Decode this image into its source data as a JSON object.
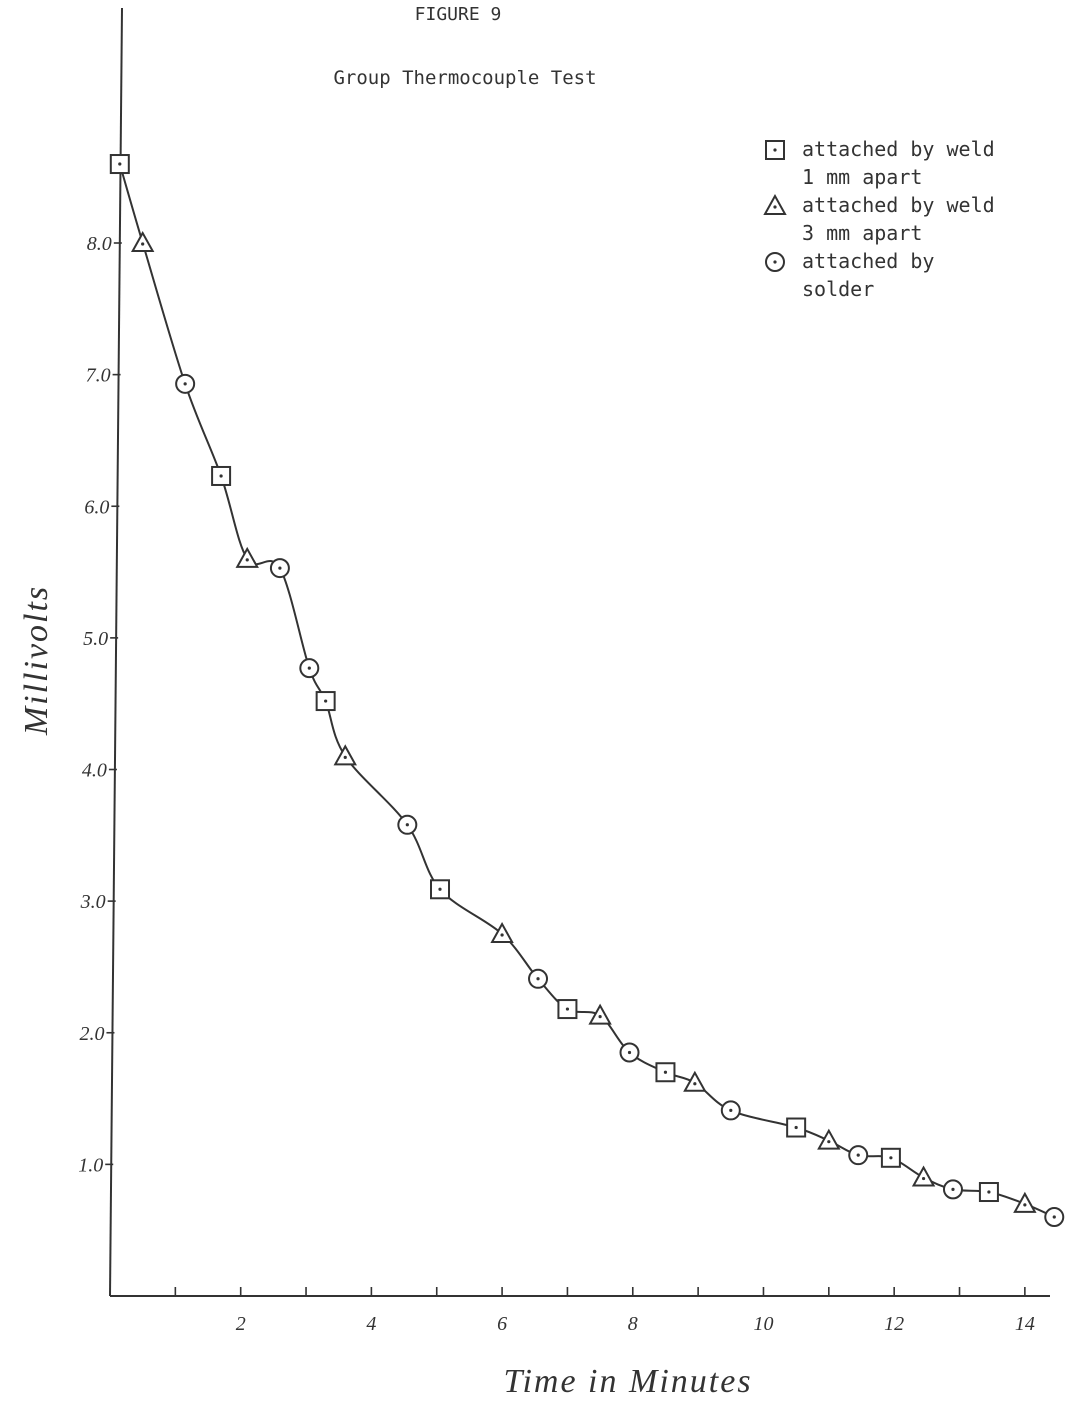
{
  "figure_label": "FIGURE 9",
  "chart_data": {
    "type": "scatter",
    "title": "Group Thermocouple Test",
    "xlabel": "Time in Minutes",
    "ylabel": "Millivolts",
    "xlim": [
      0,
      14.4
    ],
    "ylim": [
      0,
      8.75
    ],
    "x_ticks": [
      "2",
      "4",
      "6",
      "8",
      "10",
      "12",
      "14"
    ],
    "x_tick_values": [
      2,
      4,
      6,
      8,
      10,
      12,
      14
    ],
    "x_minor_ticks": [
      1,
      3,
      5,
      7,
      9,
      11,
      13
    ],
    "y_ticks": [
      "1.0",
      "2.0",
      "3.0",
      "4.0",
      "5.0",
      "6.0",
      "7.0",
      "8.0"
    ],
    "y_tick_values": [
      1,
      2,
      3,
      4,
      5,
      6,
      7,
      8
    ],
    "legend_position": "top-right",
    "series": [
      {
        "name": "attached by weld 1 mm apart",
        "legend_lines": [
          "attached by weld",
          "1 mm apart"
        ],
        "marker": "square",
        "x": [
          0.15,
          1.7,
          3.3,
          5.05,
          7.0,
          8.5,
          10.5,
          11.95,
          13.45
        ],
        "y": [
          8.6,
          6.23,
          4.52,
          3.09,
          2.18,
          1.7,
          1.28,
          1.05,
          0.79
        ]
      },
      {
        "name": "attached by weld 3 mm apart",
        "legend_lines": [
          "attached by weld",
          "3 mm apart"
        ],
        "marker": "triangle",
        "x": [
          0.5,
          2.1,
          3.6,
          6.0,
          7.5,
          8.95,
          11.0,
          12.45,
          14.0
        ],
        "y": [
          8.0,
          5.6,
          4.1,
          2.75,
          2.13,
          1.62,
          1.18,
          0.9,
          0.7
        ]
      },
      {
        "name": "attached by solder",
        "legend_lines": [
          "attached by",
          "solder"
        ],
        "marker": "circle",
        "x": [
          1.15,
          2.6,
          3.05,
          4.55,
          6.55,
          7.95,
          9.5,
          11.45,
          12.9,
          14.45
        ],
        "y": [
          6.93,
          5.53,
          4.77,
          3.58,
          2.41,
          1.85,
          1.41,
          1.07,
          0.81,
          0.6
        ]
      }
    ],
    "fit_curve": "smooth decay through all points"
  }
}
